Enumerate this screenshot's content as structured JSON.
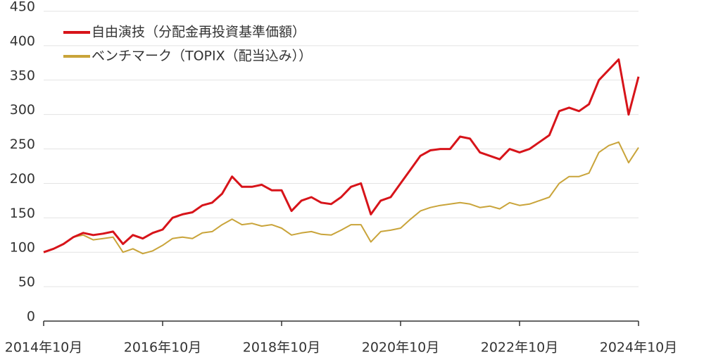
{
  "chart_data": {
    "type": "line",
    "x": [
      "2014-10",
      "2014-12",
      "2015-02",
      "2015-04",
      "2015-06",
      "2015-08",
      "2015-10",
      "2015-12",
      "2016-02",
      "2016-04",
      "2016-06",
      "2016-08",
      "2016-10",
      "2016-12",
      "2017-02",
      "2017-04",
      "2017-06",
      "2017-08",
      "2017-10",
      "2017-12",
      "2018-02",
      "2018-04",
      "2018-06",
      "2018-08",
      "2018-10",
      "2018-12",
      "2019-02",
      "2019-04",
      "2019-06",
      "2019-08",
      "2019-10",
      "2019-12",
      "2020-02",
      "2020-04",
      "2020-06",
      "2020-08",
      "2020-10",
      "2020-12",
      "2021-02",
      "2021-04",
      "2021-06",
      "2021-08",
      "2021-10",
      "2021-12",
      "2022-02",
      "2022-04",
      "2022-06",
      "2022-08",
      "2022-10",
      "2022-12",
      "2023-02",
      "2023-04",
      "2023-06",
      "2023-08",
      "2023-10",
      "2023-12",
      "2024-02",
      "2024-04",
      "2024-06",
      "2024-08",
      "2024-10"
    ],
    "series": [
      {
        "name": "自由演技（分配金再投資基準価額）",
        "color": "#d7141a",
        "values": [
          100,
          105,
          112,
          122,
          128,
          125,
          127,
          130,
          112,
          125,
          120,
          128,
          133,
          150,
          155,
          158,
          168,
          172,
          185,
          210,
          195,
          195,
          198,
          190,
          190,
          160,
          175,
          180,
          172,
          170,
          180,
          195,
          200,
          155,
          175,
          180,
          200,
          220,
          240,
          248,
          250,
          250,
          268,
          265,
          245,
          240,
          235,
          250,
          245,
          250,
          260,
          270,
          305,
          310,
          305,
          315,
          350,
          365,
          380,
          300,
          355
        ]
      },
      {
        "name": "ベンチマーク（TOPIX（配当込み））",
        "color": "#c9a43a",
        "values": [
          100,
          105,
          112,
          122,
          125,
          118,
          120,
          122,
          100,
          105,
          98,
          102,
          110,
          120,
          122,
          120,
          128,
          130,
          140,
          148,
          140,
          142,
          138,
          140,
          135,
          125,
          128,
          130,
          126,
          125,
          132,
          140,
          140,
          115,
          130,
          132,
          135,
          148,
          160,
          165,
          168,
          170,
          172,
          170,
          165,
          167,
          163,
          172,
          168,
          170,
          175,
          180,
          200,
          210,
          210,
          215,
          245,
          255,
          260,
          230,
          252
        ]
      }
    ],
    "xlim": [
      "2014-10",
      "2024-10"
    ],
    "xticks": [
      {
        "value": "2014-10",
        "label": "2014年10月"
      },
      {
        "value": "2016-10",
        "label": "2016年10月"
      },
      {
        "value": "2018-10",
        "label": "2018年10月"
      },
      {
        "value": "2020-10",
        "label": "2020年10月"
      },
      {
        "value": "2022-10",
        "label": "2022年10月"
      },
      {
        "value": "2024-10",
        "label": "2024年10月"
      }
    ],
    "ylim": [
      0,
      450
    ],
    "yticks": [
      0,
      50,
      100,
      150,
      200,
      250,
      300,
      350,
      400,
      450
    ],
    "grid": true,
    "legend": "top-left"
  }
}
